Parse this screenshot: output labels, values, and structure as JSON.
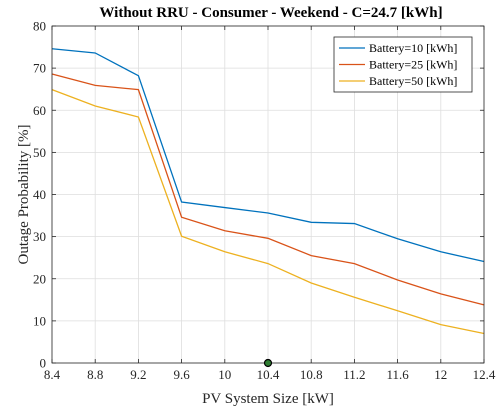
{
  "chart_data": {
    "type": "line",
    "title": "Without RRU - Consumer - Weekend - C=24.7 [kWh]",
    "xlabel": "PV System Size [kW]",
    "ylabel": "Outage Probability [%]",
    "xlim": [
      8.4,
      12.4
    ],
    "ylim": [
      0,
      80
    ],
    "xticks": [
      8.4,
      8.8,
      9.2,
      9.6,
      10,
      10.4,
      10.8,
      11.2,
      11.6,
      12,
      12.4
    ],
    "xtick_labels": [
      "8.4",
      "8.8",
      "9.2",
      "9.6",
      "10",
      "10.4",
      "10.8",
      "11.2",
      "11.6",
      "12",
      "12.4"
    ],
    "yticks": [
      0,
      10,
      20,
      30,
      40,
      50,
      60,
      70,
      80
    ],
    "ytick_labels": [
      "0",
      "10",
      "20",
      "30",
      "40",
      "50",
      "60",
      "70",
      "80"
    ],
    "grid": true,
    "legend_position": "top-right",
    "x": [
      8.4,
      8.8,
      9.2,
      9.6,
      10,
      10.4,
      10.8,
      11.2,
      11.6,
      12,
      12.4
    ],
    "series": [
      {
        "name": "Battery=10 [kWh]",
        "color": "#0072BD",
        "values": [
          74.6,
          73.6,
          68.2,
          38.2,
          36.9,
          35.6,
          33.4,
          33.1,
          29.5,
          26.4,
          24.1
        ]
      },
      {
        "name": "Battery=25 [kWh]",
        "color": "#D95319",
        "values": [
          68.6,
          65.9,
          64.9,
          34.6,
          31.4,
          29.6,
          25.5,
          23.6,
          19.7,
          16.4,
          13.8
        ]
      },
      {
        "name": "Battery=50 [kWh]",
        "color": "#EDB120",
        "values": [
          64.9,
          61.0,
          58.4,
          30.1,
          26.4,
          23.6,
          19.0,
          15.6,
          12.4,
          9.1,
          7.0
        ]
      }
    ],
    "marker": {
      "x": 10.4,
      "y": 0,
      "color": "#2e7d32"
    }
  }
}
